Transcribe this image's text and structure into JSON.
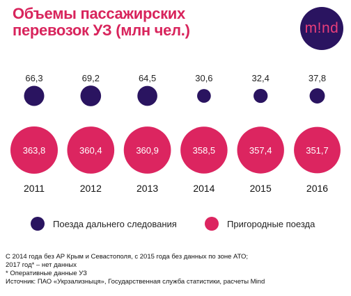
{
  "title_lines": [
    "Объемы пассажирских",
    "перевозок УЗ (млн чел.)"
  ],
  "logo_text": "m!nd",
  "colors": {
    "title": "#d8245c",
    "long_distance": "#2a1460",
    "suburban": "#dc2560",
    "logo_bg": "#2a1460",
    "logo_text": "#e83e7a"
  },
  "legend": {
    "long_distance": "Поезда дальнего следования",
    "suburban": "Пригородные поезда"
  },
  "chart_data": {
    "type": "bubble",
    "categories": [
      "2011",
      "2012",
      "2013",
      "2014",
      "2015",
      "2016"
    ],
    "series": [
      {
        "name": "Поезда дальнего следования",
        "values": [
          66.3,
          69.2,
          64.5,
          30.6,
          32.4,
          37.8
        ],
        "labels": [
          "66,3",
          "69,2",
          "64,5",
          "30,6",
          "32,4",
          "37,8"
        ]
      },
      {
        "name": "Пригородные поезда",
        "values": [
          363.8,
          360.4,
          360.9,
          358.5,
          357.4,
          351.7
        ],
        "labels": [
          "363,8",
          "360,4",
          "360,9",
          "358,5",
          "357,4",
          "351,7"
        ]
      }
    ]
  },
  "notes": [
    "С 2014 года без АР Крым и Севастополя, с 2015 года без данных по зоне АТО;",
    "2017 год* – нет данных",
    "* Оперативные данные УЗ",
    "Источник: ПАО «Укрзализныця», Государственная служба статистики, расчеты Mind"
  ]
}
